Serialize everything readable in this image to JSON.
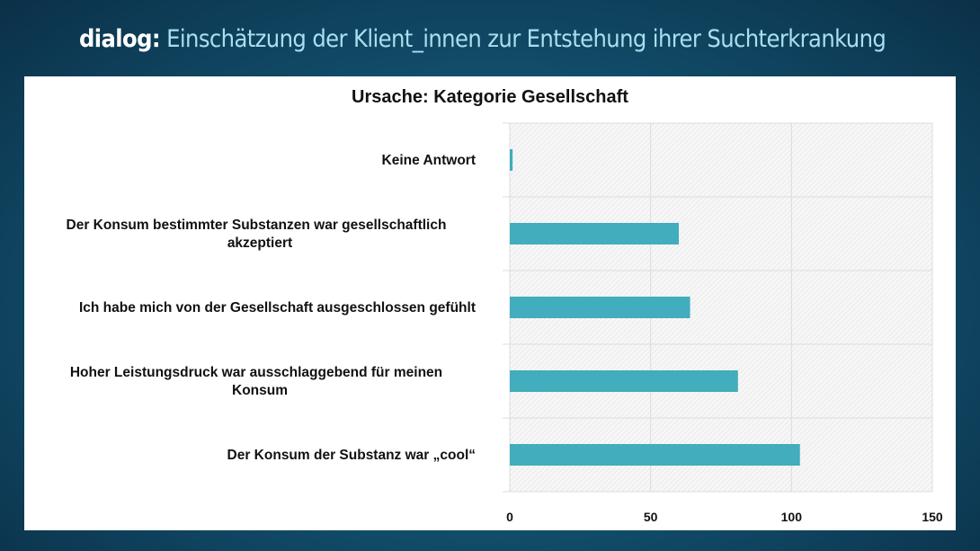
{
  "header": {
    "brand": "dialog:",
    "title": "Einschätzung der Klient_innen zur Entstehung ihrer Suchterkrankung"
  },
  "chart_data": {
    "type": "bar",
    "orientation": "horizontal",
    "title": "Ursache: Kategorie Gesellschaft",
    "categories": [
      [
        "Keine Antwort"
      ],
      [
        "Der Konsum bestimmter Substanzen war gesellschaftlich",
        "akzeptiert"
      ],
      [
        "Ich habe mich von der Gesellschaft ausgeschlossen gefühlt"
      ],
      [
        "Hoher Leistungsdruck war ausschlaggebend für meinen",
        "Konsum"
      ],
      [
        "Der Konsum der Substanz war „cool“"
      ]
    ],
    "values": [
      1,
      60,
      64,
      81,
      103
    ],
    "xlim": [
      0,
      150
    ],
    "xticks": [
      "0",
      "50",
      "100",
      "150"
    ],
    "grid": true,
    "bar_color": "#41adbd",
    "xlabel": "",
    "ylabel": ""
  }
}
